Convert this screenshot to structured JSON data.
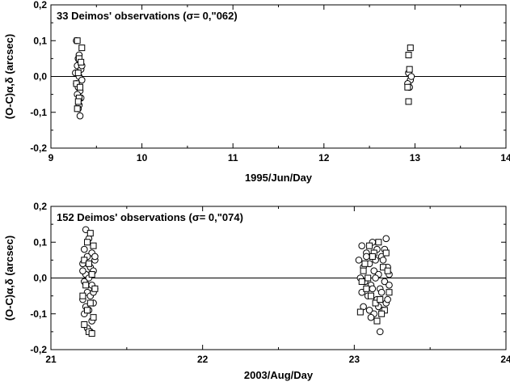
{
  "chart_data": [
    {
      "type": "scatter",
      "title": "33 Deimos' observations (σ= 0,\"062)",
      "xlabel": "1995/Jun/Day",
      "ylabel": "(O-C)α,δ (arcsec)",
      "xlim": [
        9,
        14
      ],
      "ylim": [
        -0.2,
        0.2
      ],
      "xticks": [
        "9",
        "10",
        "11",
        "12",
        "13",
        "14"
      ],
      "yticks": [
        "0,2",
        "0,1",
        "0,0",
        "-0,1",
        "-0,2"
      ],
      "zero_line": true,
      "series": [
        {
          "marker": "circle",
          "points": [
            [
              9.28,
              0.1
            ],
            [
              9.3,
              0.05
            ],
            [
              9.32,
              0.04
            ],
            [
              9.29,
              0.03
            ],
            [
              9.33,
              0.02
            ],
            [
              9.27,
              0.01
            ],
            [
              9.31,
              0.0
            ],
            [
              9.34,
              -0.01
            ],
            [
              9.28,
              -0.02
            ],
            [
              9.3,
              -0.03
            ],
            [
              9.32,
              -0.04
            ],
            [
              9.29,
              -0.05
            ],
            [
              9.33,
              -0.06
            ],
            [
              9.31,
              -0.08
            ],
            [
              9.3,
              -0.09
            ],
            [
              9.32,
              -0.11
            ],
            [
              9.34,
              0.03
            ],
            [
              9.31,
              0.06
            ],
            [
              12.93,
              0.01
            ],
            [
              12.95,
              -0.01
            ],
            [
              12.92,
              -0.02
            ],
            [
              12.94,
              -0.03
            ],
            [
              12.96,
              0.0
            ]
          ]
        },
        {
          "marker": "square",
          "points": [
            [
              9.29,
              0.1
            ],
            [
              9.34,
              0.08
            ],
            [
              9.31,
              0.05
            ],
            [
              9.33,
              0.04
            ],
            [
              9.3,
              0.01
            ],
            [
              9.28,
              -0.02
            ],
            [
              9.32,
              -0.03
            ],
            [
              9.31,
              -0.06
            ],
            [
              9.3,
              -0.07
            ],
            [
              9.29,
              -0.09
            ],
            [
              12.95,
              0.08
            ],
            [
              12.93,
              0.06
            ],
            [
              12.94,
              0.02
            ],
            [
              12.92,
              -0.03
            ],
            [
              12.93,
              -0.07
            ]
          ]
        }
      ]
    },
    {
      "type": "scatter",
      "title": "152 Deimos' observations (σ= 0,\"074)",
      "xlabel": "2003/Aug/Day",
      "ylabel": "(O-C)α,δ (arcsec)",
      "xlim": [
        21,
        24
      ],
      "ylim": [
        -0.2,
        0.2
      ],
      "xticks": [
        "21",
        "22",
        "23",
        "24"
      ],
      "yticks": [
        "0,2",
        "0,1",
        "0,0",
        "-0,1",
        "-0,2"
      ],
      "zero_line": true,
      "series": [
        {
          "marker": "circle",
          "points": [
            [
              21.23,
              0.135
            ],
            [
              21.25,
              0.11
            ],
            [
              21.22,
              0.08
            ],
            [
              21.27,
              0.07
            ],
            [
              21.24,
              0.06
            ],
            [
              21.29,
              0.05
            ],
            [
              21.21,
              0.04
            ],
            [
              21.26,
              0.03
            ],
            [
              21.28,
              0.02
            ],
            [
              21.23,
              0.01
            ],
            [
              21.25,
              0.0
            ],
            [
              21.22,
              -0.01
            ],
            [
              21.27,
              -0.02
            ],
            [
              21.29,
              -0.03
            ],
            [
              21.24,
              -0.04
            ],
            [
              21.26,
              -0.05
            ],
            [
              21.21,
              -0.06
            ],
            [
              21.28,
              -0.07
            ],
            [
              21.23,
              -0.08
            ],
            [
              21.25,
              -0.09
            ],
            [
              21.22,
              -0.1
            ],
            [
              21.27,
              -0.12
            ],
            [
              21.24,
              -0.14
            ],
            [
              21.26,
              -0.15
            ],
            [
              21.29,
              0.06
            ],
            [
              21.21,
              0.02
            ],
            [
              21.28,
              -0.04
            ],
            [
              23.05,
              0.09
            ],
            [
              23.08,
              0.07
            ],
            [
              23.12,
              0.1
            ],
            [
              23.15,
              0.08
            ],
            [
              23.18,
              0.06
            ],
            [
              23.21,
              0.11
            ],
            [
              23.03,
              0.05
            ],
            [
              23.06,
              0.03
            ],
            [
              23.1,
              0.04
            ],
            [
              23.13,
              0.02
            ],
            [
              23.16,
              0.01
            ],
            [
              23.19,
              0.05
            ],
            [
              23.22,
              0.03
            ],
            [
              23.04,
              0.0
            ],
            [
              23.07,
              -0.01
            ],
            [
              23.11,
              -0.02
            ],
            [
              23.14,
              0.0
            ],
            [
              23.17,
              -0.03
            ],
            [
              23.2,
              -0.01
            ],
            [
              23.23,
              -0.02
            ],
            [
              23.05,
              -0.04
            ],
            [
              23.09,
              -0.05
            ],
            [
              23.12,
              -0.03
            ],
            [
              23.15,
              -0.06
            ],
            [
              23.18,
              -0.04
            ],
            [
              23.21,
              -0.07
            ],
            [
              23.06,
              -0.08
            ],
            [
              23.1,
              -0.09
            ],
            [
              23.13,
              -0.1
            ],
            [
              23.16,
              -0.08
            ],
            [
              23.19,
              -0.09
            ],
            [
              23.22,
              -0.06
            ],
            [
              23.17,
              -0.15
            ],
            [
              23.08,
              0.06
            ],
            [
              23.14,
              0.05
            ],
            [
              23.2,
              0.08
            ],
            [
              23.11,
              -0.11
            ],
            [
              23.23,
              0.01
            ]
          ]
        },
        {
          "marker": "square",
          "points": [
            [
              21.26,
              0.125
            ],
            [
              21.24,
              0.1
            ],
            [
              21.28,
              0.09
            ],
            [
              21.22,
              0.05
            ],
            [
              21.25,
              0.04
            ],
            [
              21.27,
              0.01
            ],
            [
              21.23,
              -0.02
            ],
            [
              21.29,
              -0.03
            ],
            [
              21.21,
              -0.05
            ],
            [
              21.26,
              -0.07
            ],
            [
              21.24,
              -0.09
            ],
            [
              21.28,
              -0.11
            ],
            [
              21.22,
              -0.13
            ],
            [
              21.25,
              -0.15
            ],
            [
              21.27,
              -0.155
            ],
            [
              23.04,
              -0.095
            ],
            [
              23.07,
              0.04
            ],
            [
              23.1,
              0.09
            ],
            [
              23.13,
              0.07
            ],
            [
              23.16,
              0.1
            ],
            [
              23.19,
              0.03
            ],
            [
              23.22,
              0.02
            ],
            [
              23.05,
              -0.01
            ],
            [
              23.08,
              -0.03
            ],
            [
              23.11,
              -0.05
            ],
            [
              23.14,
              -0.07
            ],
            [
              23.17,
              -0.06
            ],
            [
              23.2,
              -0.09
            ],
            [
              23.23,
              -0.04
            ],
            [
              23.09,
              0.0
            ],
            [
              23.15,
              -0.12
            ],
            [
              23.12,
              0.06
            ],
            [
              23.18,
              -0.1
            ],
            [
              23.21,
              0.07
            ],
            [
              23.06,
              0.02
            ]
          ]
        }
      ]
    }
  ]
}
